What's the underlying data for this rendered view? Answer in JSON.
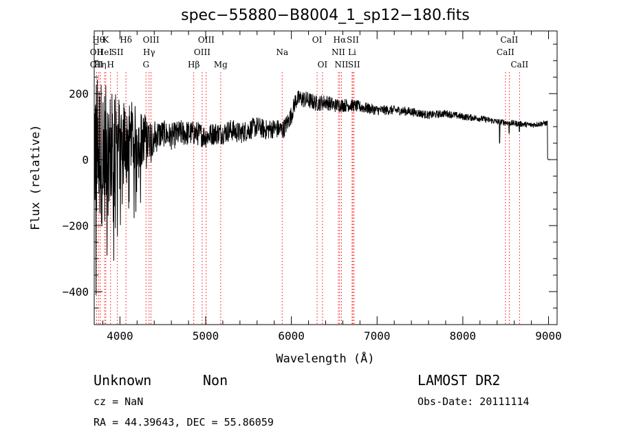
{
  "chart_data": {
    "type": "line",
    "title": "spec−55880−B8004_1_sp12−180.fits",
    "xlabel": "Wavelength (Å)",
    "ylabel": "Flux (relative)",
    "xlim": [
      3700,
      9100
    ],
    "ylim": [
      -500,
      390
    ],
    "xticks": [
      4000,
      5000,
      6000,
      7000,
      8000,
      9000
    ],
    "yticks": [
      -400,
      -200,
      0,
      200
    ],
    "grid": false,
    "line_color": "#000000",
    "marker_color": "#ff0000",
    "anchors": {
      "x": [
        3700,
        3750,
        3800,
        3850,
        3900,
        3950,
        4000,
        4050,
        4100,
        4150,
        4200,
        4300,
        4400,
        4500,
        4600,
        4700,
        4800,
        4900,
        5000,
        5100,
        5200,
        5300,
        5400,
        5500,
        5600,
        5700,
        5800,
        5900,
        5950,
        6000,
        6050,
        6100,
        6200,
        6300,
        6400,
        6500,
        6600,
        6700,
        6800,
        6900,
        7000,
        7200,
        7400,
        7600,
        7800,
        8000,
        8200,
        8400,
        8600,
        8800,
        8950,
        9000
      ],
      "y": [
        50,
        30,
        20,
        20,
        30,
        40,
        50,
        60,
        60,
        70,
        60,
        70,
        70,
        80,
        70,
        80,
        80,
        80,
        70,
        80,
        80,
        90,
        80,
        90,
        100,
        90,
        95,
        90,
        110,
        135,
        180,
        185,
        180,
        170,
        175,
        165,
        165,
        165,
        160,
        155,
        150,
        150,
        145,
        135,
        140,
        130,
        125,
        115,
        110,
        105,
        110,
        110
      ]
    },
    "noise": {
      "x": [
        3700,
        3900,
        4100,
        4300,
        4500,
        4700,
        5000,
        6000,
        7000,
        8000,
        9000
      ],
      "amplitude": [
        260,
        180,
        120,
        70,
        40,
        40,
        35,
        28,
        15,
        10,
        8
      ]
    },
    "features": [
      {
        "x": 8430,
        "y": 50
      },
      {
        "x": 8540,
        "y": 80
      },
      {
        "x": 8660,
        "y": 85
      },
      {
        "x": 8990,
        "y": 5
      }
    ],
    "line_markers": [
      {
        "wavelength": 3727,
        "labels": [
          "OII",
          "OII"
        ],
        "rows": [
          1,
          2
        ]
      },
      {
        "wavelength": 3750,
        "labels": [
          "Hθ"
        ],
        "rows": [
          0
        ]
      },
      {
        "wavelength": 3770,
        "labels": [
          "Hη"
        ],
        "rows": [
          2
        ]
      },
      {
        "wavelength": 3820,
        "labels": [
          "HeI"
        ],
        "rows": [
          1
        ]
      },
      {
        "wavelength": 3835,
        "labels": [
          "K"
        ],
        "rows": [
          0
        ]
      },
      {
        "wavelength": 3890,
        "labels": [
          "H"
        ],
        "rows": [
          2
        ]
      },
      {
        "wavelength": 3970,
        "labels": [
          "SII"
        ],
        "rows": [
          1
        ]
      },
      {
        "wavelength": 4070,
        "labels": [
          "Hδ"
        ],
        "rows": [
          0
        ]
      },
      {
        "wavelength": 4304,
        "labels": [
          "G"
        ],
        "rows": [
          2
        ]
      },
      {
        "wavelength": 4340,
        "labels": [
          "Hγ"
        ],
        "rows": [
          1
        ]
      },
      {
        "wavelength": 4363,
        "labels": [
          "OIII"
        ],
        "rows": [
          0
        ]
      },
      {
        "wavelength": 4861,
        "labels": [
          "Hβ"
        ],
        "rows": [
          2
        ]
      },
      {
        "wavelength": 4959,
        "labels": [
          "OIII"
        ],
        "rows": [
          1
        ]
      },
      {
        "wavelength": 5007,
        "labels": [
          "OIII"
        ],
        "rows": [
          0
        ]
      },
      {
        "wavelength": 5175,
        "labels": [
          "Mg"
        ],
        "rows": [
          2
        ]
      },
      {
        "wavelength": 5893,
        "labels": [
          "Na"
        ],
        "rows": [
          1
        ]
      },
      {
        "wavelength": 6300,
        "labels": [
          "OI"
        ],
        "rows": [
          0
        ]
      },
      {
        "wavelength": 6363,
        "labels": [
          "OI"
        ],
        "rows": [
          2
        ]
      },
      {
        "wavelength": 6548,
        "labels": [
          "NII"
        ],
        "rows": [
          1
        ]
      },
      {
        "wavelength": 6563,
        "labels": [
          "Hα"
        ],
        "rows": [
          0
        ]
      },
      {
        "wavelength": 6584,
        "labels": [
          "NII"
        ],
        "rows": [
          2
        ]
      },
      {
        "wavelength": 6708,
        "labels": [
          "Li"
        ],
        "rows": [
          1
        ]
      },
      {
        "wavelength": 6717,
        "labels": [
          "SII"
        ],
        "rows": [
          0
        ]
      },
      {
        "wavelength": 6731,
        "labels": [
          "SII"
        ],
        "rows": [
          2
        ]
      },
      {
        "wavelength": 8498,
        "labels": [
          "CaII"
        ],
        "rows": [
          1
        ]
      },
      {
        "wavelength": 8542,
        "labels": [
          "CaII"
        ],
        "rows": [
          0
        ]
      },
      {
        "wavelength": 8662,
        "labels": [
          "CaII"
        ],
        "rows": [
          2
        ]
      }
    ]
  },
  "info": {
    "object_class": "Unknown",
    "subclass": "Non",
    "survey": "LAMOST DR2",
    "redshift": "cz = NaN",
    "obs_date": "Obs-Date: 20111114",
    "coords": "RA =  44.39643, DEC =  55.86059"
  }
}
